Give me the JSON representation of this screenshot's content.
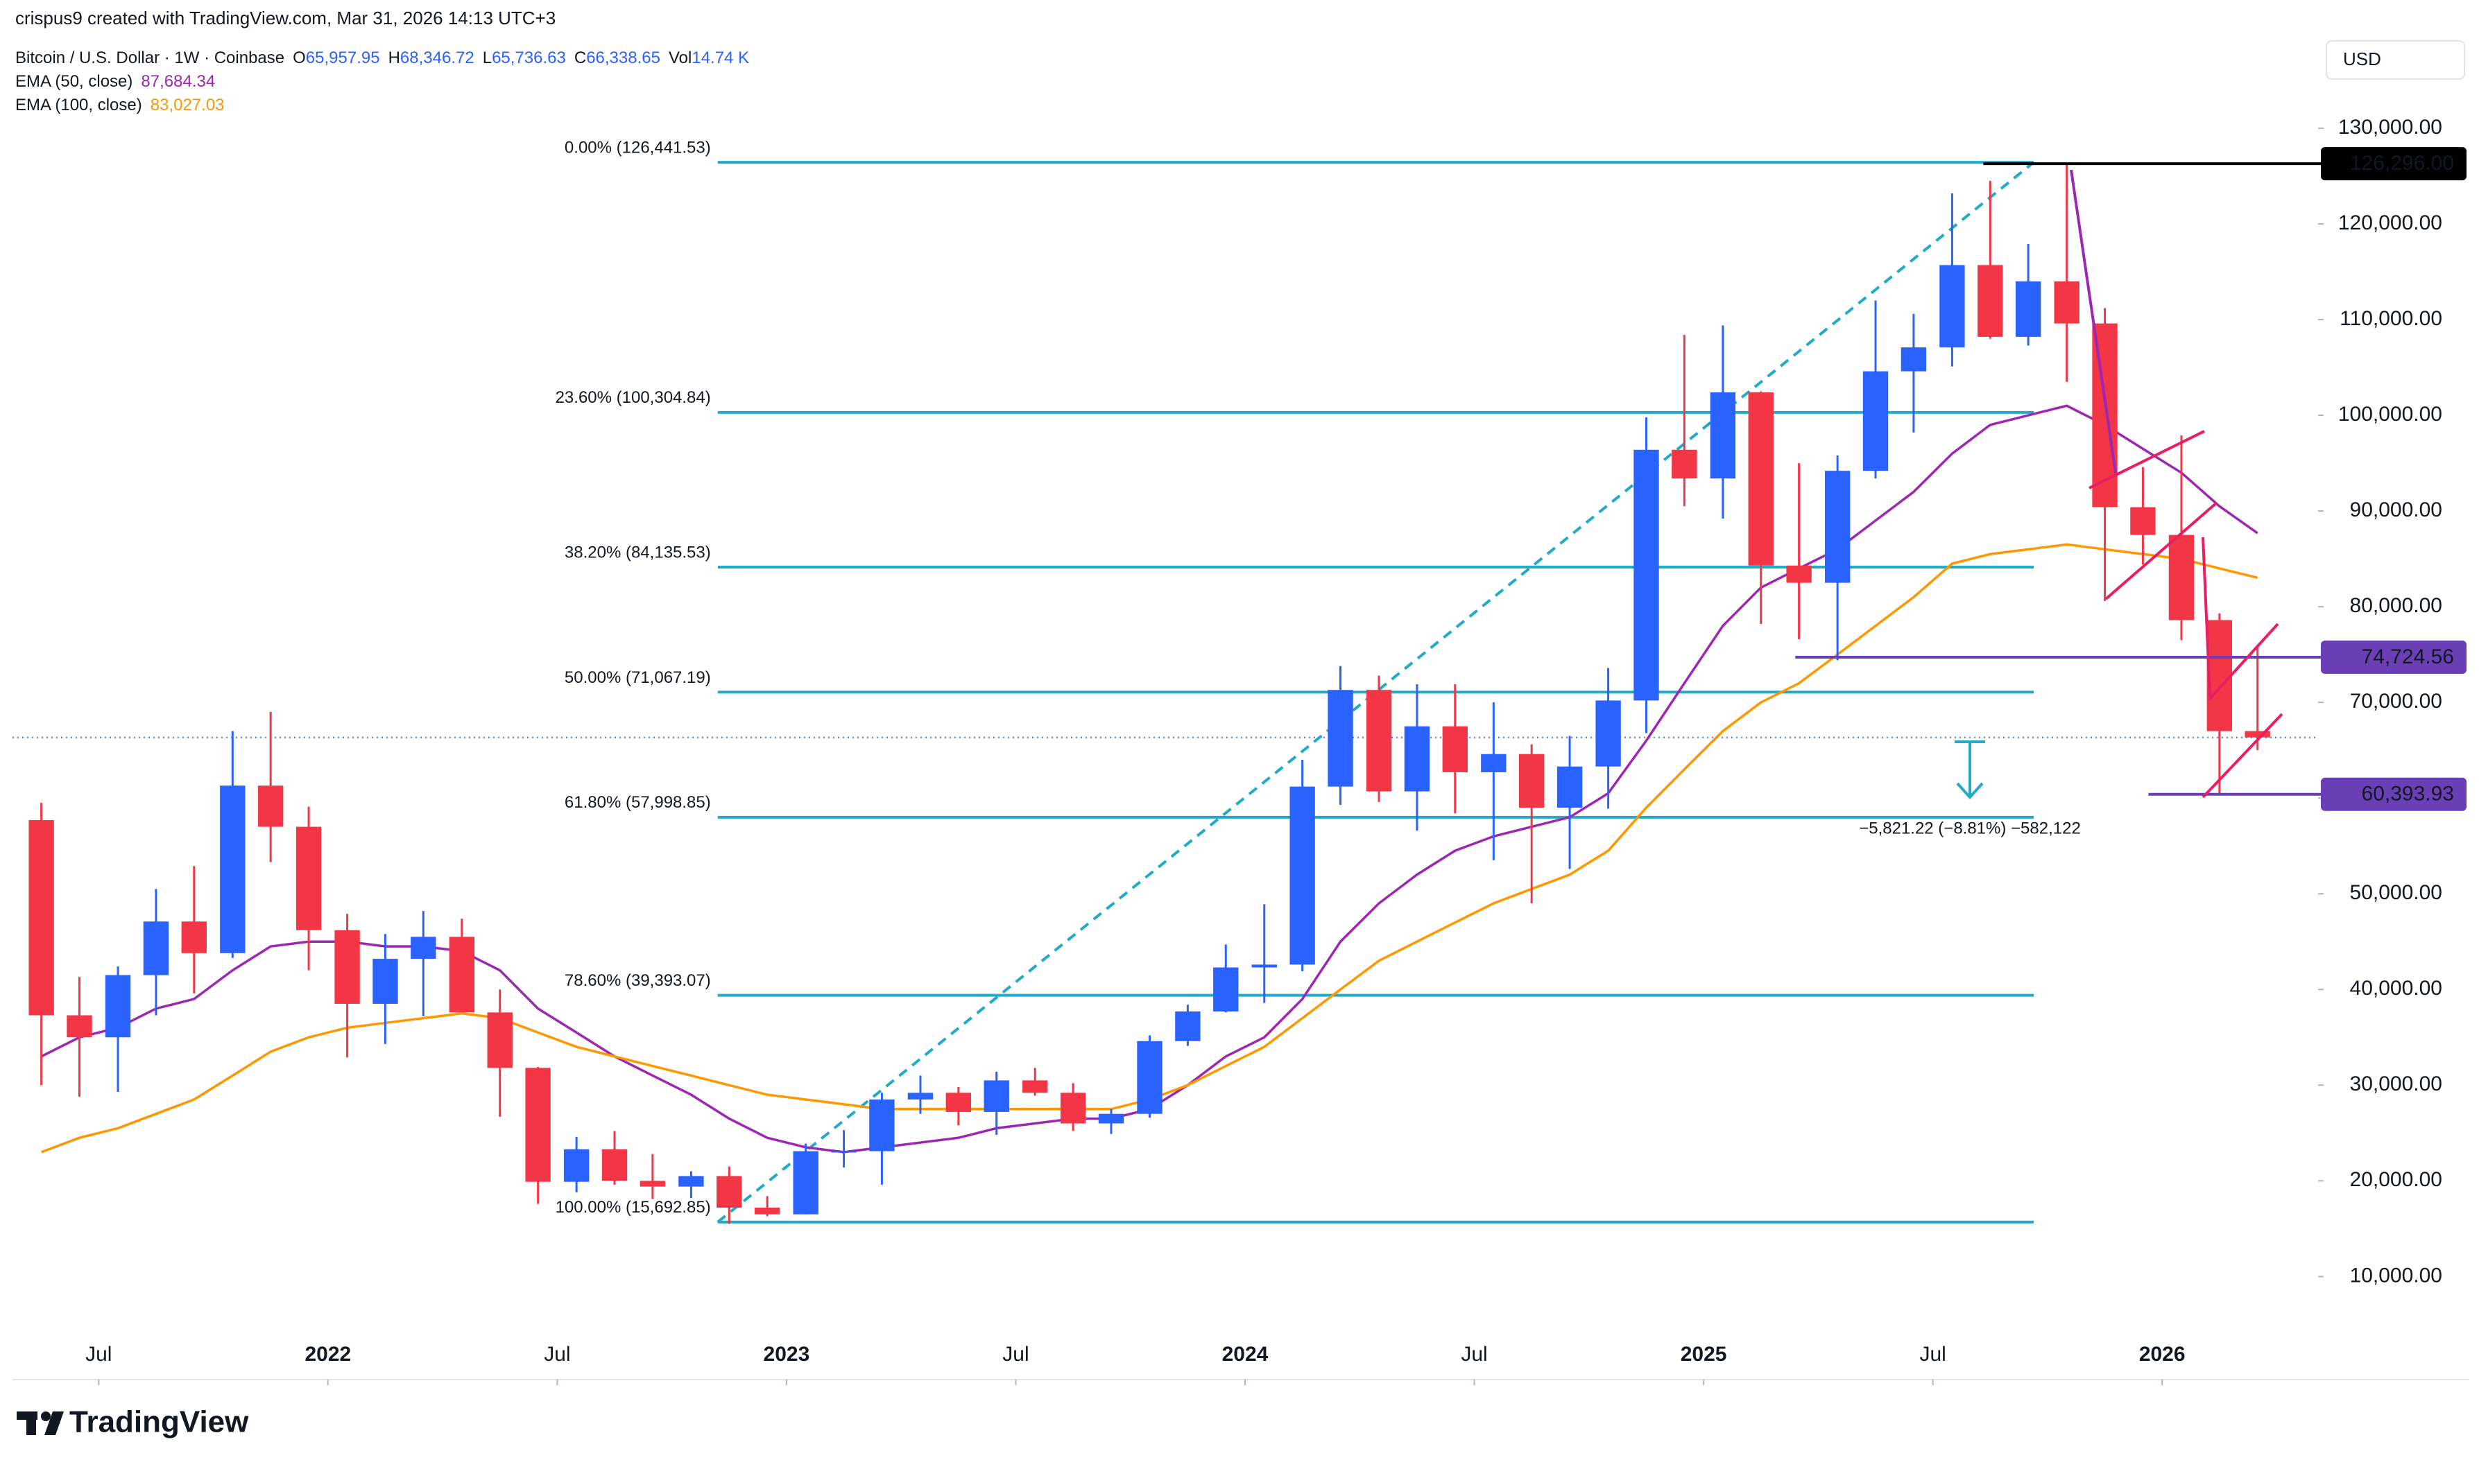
{
  "credit": "crispus9 created with TradingView.com, Mar 31, 2026 14:13 UTC+3",
  "currency": "USD",
  "brand": "TradingView",
  "chart_data": {
    "type": "candlestick",
    "title": "Bitcoin / U.S. Dollar · 1W · Coinbase",
    "ohlc": [
      {
        "key": "O",
        "value": "65,957.95"
      },
      {
        "key": "H",
        "value": "68,346.72"
      },
      {
        "key": "L",
        "value": "65,736.63"
      },
      {
        "key": "C",
        "value": "66,338.65"
      },
      {
        "key": "Vol",
        "value": "14.74 K"
      }
    ],
    "up_color": "#2962ff",
    "down_color": "#f23645",
    "x": [
      2021.375,
      2021.458,
      2021.542,
      2021.625,
      2021.708,
      2021.792,
      2021.875,
      2021.958,
      2022.042,
      2022.125,
      2022.208,
      2022.292,
      2022.375,
      2022.458,
      2022.542,
      2022.625,
      2022.708,
      2022.792,
      2022.875,
      2022.958,
      2023.042,
      2023.125,
      2023.208,
      2023.292,
      2023.375,
      2023.458,
      2023.542,
      2023.625,
      2023.708,
      2023.792,
      2023.875,
      2023.958,
      2024.042,
      2024.125,
      2024.208,
      2024.292,
      2024.375,
      2024.458,
      2024.542,
      2024.625,
      2024.708,
      2024.792,
      2024.875,
      2024.958,
      2025.042,
      2025.125,
      2025.208,
      2025.292,
      2025.375,
      2025.458,
      2025.542,
      2025.625,
      2025.708,
      2025.792,
      2025.875,
      2025.958,
      2026.042,
      2026.125,
      2026.208
    ],
    "open": [
      57700,
      37300,
      35000,
      41500,
      47100,
      43800,
      61300,
      57000,
      46200,
      38500,
      43200,
      45500,
      37600,
      31800,
      19900,
      23300,
      20000,
      19400,
      20500,
      17200,
      16500,
      23100,
      23100,
      28500,
      29200,
      27200,
      30500,
      29200,
      26000,
      27000,
      34600,
      37700,
      42300,
      42600,
      61200,
      71300,
      60700,
      67500,
      62700,
      64600,
      59000,
      63300,
      70200,
      96400,
      93400,
      102400,
      84300,
      82500,
      94200,
      104600,
      107100,
      115700,
      108200,
      114000,
      109600,
      90400,
      87500,
      78600,
      67000
    ],
    "high": [
      59500,
      41300,
      42400,
      50500,
      52900,
      67000,
      69000,
      59100,
      47900,
      45800,
      48200,
      47400,
      40000,
      31900,
      24600,
      25200,
      22800,
      21000,
      21500,
      18400,
      23900,
      25300,
      29200,
      31000,
      29800,
      31400,
      31800,
      30200,
      27500,
      35200,
      38400,
      44700,
      48900,
      64000,
      73800,
      72800,
      71900,
      71900,
      70000,
      65600,
      66500,
      73600,
      99800,
      108400,
      109400,
      102500,
      95000,
      95800,
      112000,
      110600,
      123200,
      124500,
      117900,
      126296,
      111200,
      94600,
      97900,
      79300,
      76000
    ],
    "low": [
      30000,
      28800,
      29300,
      37300,
      39600,
      43300,
      53300,
      42000,
      32900,
      34300,
      37200,
      37700,
      26700,
      17600,
      18800,
      19600,
      18100,
      18200,
      15500,
      16300,
      16500,
      21400,
      19600,
      27000,
      25800,
      24800,
      28900,
      25200,
      24900,
      26600,
      34100,
      37600,
      38600,
      41900,
      59300,
      59600,
      56600,
      58400,
      53500,
      49000,
      52600,
      58900,
      66800,
      90500,
      89200,
      78200,
      76600,
      74400,
      93400,
      98200,
      105100,
      108000,
      107300,
      103500,
      80600,
      84400,
      76500,
      60393.93,
      65000
    ],
    "close": [
      37300,
      35000,
      41500,
      47100,
      43800,
      61300,
      57000,
      46200,
      38500,
      43200,
      45500,
      37600,
      31800,
      19900,
      23300,
      20000,
      19400,
      20500,
      17200,
      16500,
      23100,
      23100,
      28500,
      29200,
      27200,
      30500,
      29200,
      26000,
      27000,
      34600,
      37700,
      42300,
      42600,
      61200,
      71300,
      60700,
      67500,
      62700,
      64600,
      59000,
      63300,
      70200,
      96400,
      93400,
      102400,
      84300,
      82500,
      94200,
      104600,
      107100,
      115700,
      108200,
      114000,
      109600,
      90400,
      87500,
      78600,
      67000,
      66338.65
    ],
    "series": [
      {
        "name": "EMA (50, close)",
        "legend_value": "87,684.34",
        "color": "#9c27b0",
        "values": [
          33000,
          35000,
          36000,
          38000,
          39000,
          42000,
          44500,
          45000,
          45000,
          44500,
          44500,
          44000,
          42000,
          38000,
          35500,
          33000,
          31000,
          29000,
          26500,
          24500,
          23500,
          23000,
          23500,
          24000,
          24500,
          25500,
          26000,
          26500,
          26500,
          27500,
          30000,
          33000,
          35000,
          39000,
          45000,
          49000,
          52000,
          54500,
          56000,
          57000,
          58000,
          60500,
          66000,
          72000,
          78000,
          82000,
          84000,
          86000,
          89000,
          92000,
          96000,
          99000,
          100000,
          101000,
          99000,
          96500,
          94000,
          90500,
          87684.34
        ]
      },
      {
        "name": "EMA (100, close)",
        "legend_value": "83,027.03",
        "color": "#ff9800",
        "values": [
          23000,
          24500,
          25500,
          27000,
          28500,
          31000,
          33500,
          35000,
          36000,
          36500,
          37000,
          37500,
          37000,
          35500,
          34000,
          33000,
          32000,
          31000,
          30000,
          29000,
          28500,
          28000,
          27500,
          27500,
          27500,
          27500,
          27500,
          27500,
          27500,
          28500,
          30000,
          32000,
          34000,
          37000,
          40000,
          43000,
          45000,
          47000,
          49000,
          50500,
          52000,
          54500,
          59000,
          63000,
          67000,
          70000,
          72000,
          75000,
          78000,
          81000,
          84500,
          85500,
          86000,
          86500,
          86000,
          85500,
          85000,
          84000,
          83027.03
        ]
      }
    ],
    "fib": {
      "color": "#22abc7",
      "x_range": [
        2022.85,
        2025.72
      ],
      "levels": [
        {
          "label": "0.00% (126,441.53)",
          "value": 126441.53
        },
        {
          "label": "23.60% (100,304.84)",
          "value": 100304.84
        },
        {
          "label": "38.20% (84,135.53)",
          "value": 84135.53
        },
        {
          "label": "50.00% (71,067.19)",
          "value": 71067.19
        },
        {
          "label": "61.80% (57,998.85)",
          "value": 57998.85
        },
        {
          "label": "78.60% (39,393.07)",
          "value": 39393.07
        },
        {
          "label": "100.00% (15,692.85)",
          "value": 15692.85
        }
      ]
    },
    "levels": [
      {
        "value": 126296,
        "label": "126,296.00",
        "color": "#000000",
        "x_start": 2025.61
      },
      {
        "value": 74724.56,
        "label": "74,724.56",
        "color": "#6a3fb5",
        "x_start": 2025.2
      },
      {
        "value": 60393.93,
        "label": "60,393.93",
        "color": "#6a3fb5",
        "x_start": 2025.97
      }
    ],
    "last_price": 66338.65,
    "measure_label": "−5,821.22 (−8.81%) −582,122",
    "xlim": [
      2021.312,
      2026.334
    ],
    "xticks": [
      {
        "value": 2021.5,
        "label": "Jul"
      },
      {
        "value": 2022,
        "label": "2022"
      },
      {
        "value": 2022.5,
        "label": "Jul"
      },
      {
        "value": 2023,
        "label": "2023"
      },
      {
        "value": 2023.5,
        "label": "Jul"
      },
      {
        "value": 2024,
        "label": "2024"
      },
      {
        "value": 2024.5,
        "label": "Jul"
      },
      {
        "value": 2025,
        "label": "2025"
      },
      {
        "value": 2025.5,
        "label": "Jul"
      },
      {
        "value": 2026,
        "label": "2026"
      }
    ],
    "ylim": [
      -770,
      139780
    ],
    "yticks": [
      {
        "value": 10000,
        "label": "10,000.00"
      },
      {
        "value": 20000,
        "label": "20,000.00"
      },
      {
        "value": 30000,
        "label": "30,000.00"
      },
      {
        "value": 40000,
        "label": "40,000.00"
      },
      {
        "value": 50000,
        "label": "50,000.00"
      },
      {
        "value": 60000,
        "label": "60,000.00"
      },
      {
        "value": 70000,
        "label": "70,000.00"
      },
      {
        "value": 80000,
        "label": "80,000.00"
      },
      {
        "value": 90000,
        "label": "90,000.00"
      },
      {
        "value": 100000,
        "label": "100,000.00"
      },
      {
        "value": 110000,
        "label": "110,000.00"
      },
      {
        "value": 120000,
        "label": "120,000.00"
      },
      {
        "value": 130000,
        "label": "130,000.00"
      }
    ]
  }
}
